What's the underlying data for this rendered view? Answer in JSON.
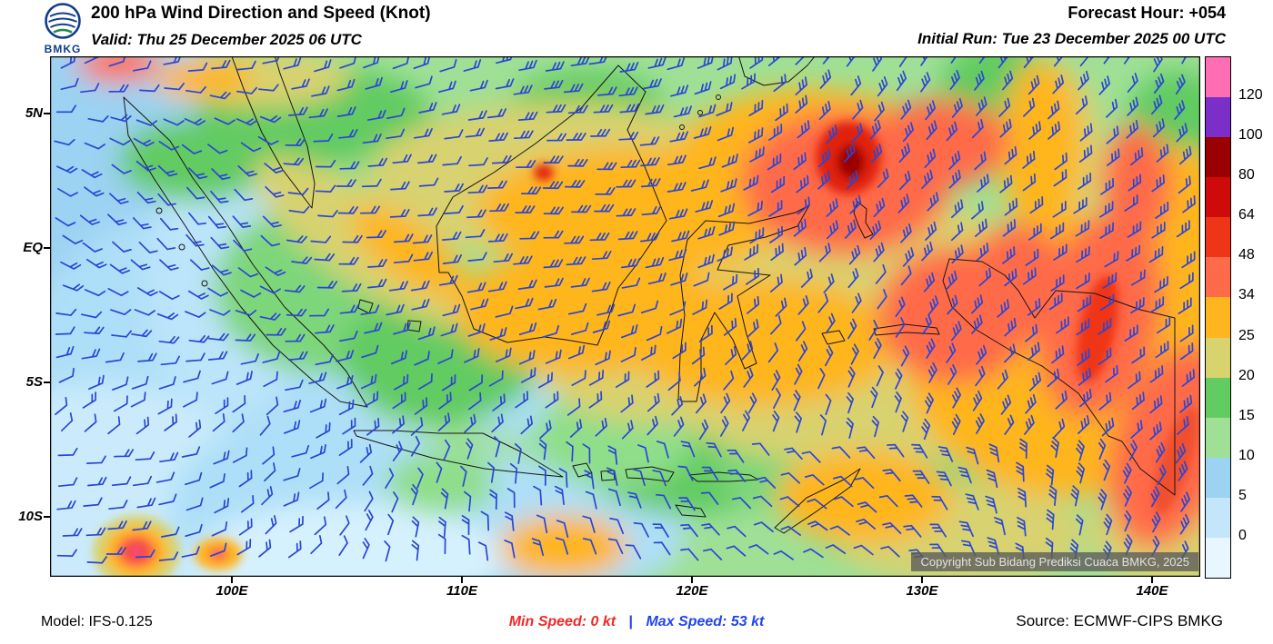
{
  "header": {
    "logo_text": "BMKG",
    "title": "200 hPa Wind Direction and Speed (Knot)",
    "valid_label": "Valid: Thu 25 December 2025 06 UTC",
    "forecast_hour": "Forecast Hour: +054",
    "initial_run": "Initial Run: Tue 23 December 2025 00 UTC"
  },
  "map": {
    "lat_labels": [
      "5N",
      "EQ",
      "5S",
      "10S"
    ],
    "lon_labels": [
      "100E",
      "110E",
      "120E",
      "130E",
      "140E"
    ],
    "copyright": "Copyright Sub Bidang Prediksi Cuaca BMKG, 2025"
  },
  "colorbar": {
    "labels": [
      "120",
      "100",
      "80",
      "64",
      "48",
      "34",
      "25",
      "20",
      "15",
      "10",
      "5",
      "0"
    ],
    "colors": [
      "#FF6EB4",
      "#7B2FC8",
      "#9B0000",
      "#CE0A0A",
      "#EF3517",
      "#FF6B4A",
      "#FFB51E",
      "#D8D26F",
      "#62CB62",
      "#9FE096",
      "#9CD2F2",
      "#C3E6FA",
      "#E8F7FF"
    ]
  },
  "footer": {
    "model": "Model: IFS-0.125",
    "min_speed": "Min Speed:  0 kt",
    "divider": "|",
    "max_speed": "Max Speed:  53 kt",
    "source": "Source: ECMWF-CIPS BMKG"
  },
  "chart_data": {
    "type": "heatmap",
    "title": "200 hPa Wind Direction and Speed (Knot)",
    "units": "knot",
    "lon_ticks": [
      "100E",
      "110E",
      "120E",
      "130E",
      "140E"
    ],
    "lat_ticks": [
      "5N",
      "EQ",
      "5S",
      "10S"
    ],
    "speed_levels_kt": [
      0,
      5,
      10,
      15,
      20,
      25,
      34,
      48,
      64,
      80,
      100,
      120
    ],
    "level_colors_low_to_high": [
      "#E8F7FF",
      "#C3E6FA",
      "#9CD2F2",
      "#9FE096",
      "#62CB62",
      "#D8D26F",
      "#FFB51E",
      "#FF6B4A",
      "#EF3517",
      "#CE0A0A",
      "#9B0000",
      "#7B2FC8",
      "#FF6EB4"
    ],
    "min_speed_kt": 0,
    "max_speed_kt": 53,
    "forecast_hour": 54,
    "valid_utc": "Thu 25 December 2025 06 UTC",
    "initial_run_utc": "Tue 23 December 2025 00 UTC",
    "model": "IFS-0.125",
    "source": "ECMWF-CIPS BMKG",
    "barb_color": "#2A46D4"
  }
}
